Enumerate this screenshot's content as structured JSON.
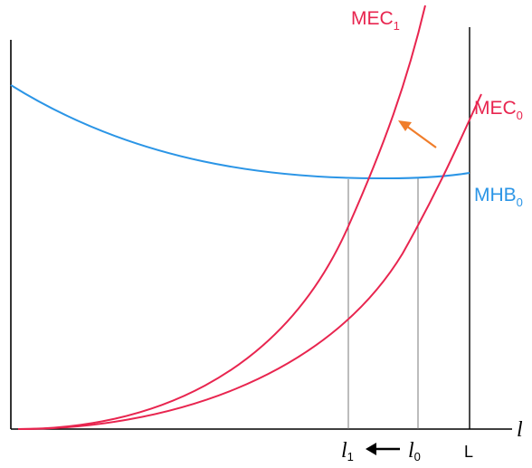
{
  "colors": {
    "mec": "#e8254f",
    "mhb": "#2b95e6",
    "arrow": "#f07d2a",
    "axis": "#000000",
    "guide": "#6b6b6b"
  },
  "curves": {
    "mec1": {
      "base": "MEC",
      "sub": "1"
    },
    "mec0": {
      "base": "MEC",
      "sub": "0"
    },
    "mhb0": {
      "base": "MHB",
      "sub": "0"
    }
  },
  "x_axis": {
    "label": "l",
    "ticks": [
      {
        "base": "l",
        "sub": "1"
      },
      {
        "base": "l",
        "sub": "0"
      },
      {
        "text": "L"
      }
    ]
  },
  "annotations": {
    "orange_arrow": "shift-arrow",
    "black_arrow": "left-arrow"
  }
}
